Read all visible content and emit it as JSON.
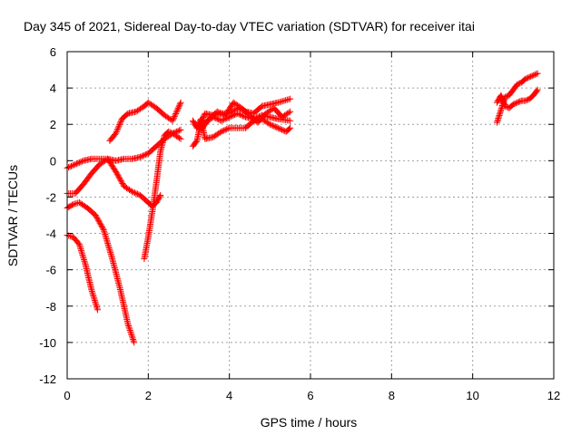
{
  "chart_data": {
    "type": "scatter",
    "title": "Day 345 of 2021, Sidereal Day-to-day VTEC variation (SDTVAR) for receiver itai",
    "xlabel": "GPS time / hours",
    "ylabel": "SDTVAR / TECUs",
    "xlim": [
      0,
      12
    ],
    "ylim": [
      -12,
      6
    ],
    "xticks": [
      "0",
      "2",
      "4",
      "6",
      "8",
      "10",
      "12"
    ],
    "yticks": [
      "6",
      "4",
      "2",
      "0",
      "-2",
      "-4",
      "-6",
      "-8",
      "-10",
      "-12"
    ],
    "grid": true,
    "marker": "+",
    "color": "#ff0000",
    "series": [
      {
        "x": [
          0.0,
          0.2,
          0.4,
          0.6,
          0.8,
          1.0,
          1.2,
          1.4,
          1.6,
          1.8,
          2.0,
          2.2,
          2.4,
          2.6,
          2.8
        ],
        "y": [
          -0.4,
          -0.2,
          0.0,
          0.1,
          0.1,
          0.1,
          0.0,
          0.1,
          0.1,
          0.2,
          0.4,
          0.8,
          1.2,
          1.5,
          1.7
        ]
      },
      {
        "x": [
          0.0,
          0.2,
          0.4,
          0.6,
          0.8,
          1.0,
          1.2,
          1.4,
          1.6,
          1.8,
          2.0,
          2.1,
          2.2,
          2.3
        ],
        "y": [
          -1.8,
          -1.8,
          -1.3,
          -0.7,
          -0.2,
          0.1,
          -0.6,
          -1.4,
          -1.7,
          -1.9,
          -2.3,
          -2.5,
          -2.3,
          -1.9
        ]
      },
      {
        "x": [
          0.0,
          0.15,
          0.3,
          0.5,
          0.7,
          0.9,
          1.1,
          1.3,
          1.5,
          1.65
        ],
        "y": [
          -2.6,
          -2.4,
          -2.3,
          -2.6,
          -3.0,
          -3.8,
          -5.3,
          -7.0,
          -9.0,
          -10.0
        ]
      },
      {
        "x": [
          0.0,
          0.15,
          0.3,
          0.45,
          0.6,
          0.75
        ],
        "y": [
          -4.1,
          -4.2,
          -4.6,
          -5.7,
          -7.1,
          -8.2
        ]
      },
      {
        "x": [
          1.05,
          1.2,
          1.35,
          1.5,
          1.7,
          1.9,
          2.0,
          2.2,
          2.4,
          2.6,
          2.8
        ],
        "y": [
          1.1,
          1.5,
          2.3,
          2.6,
          2.7,
          3.0,
          3.2,
          2.9,
          2.5,
          2.2,
          3.2
        ]
      },
      {
        "x": [
          1.9,
          2.0,
          2.1,
          2.2,
          2.3,
          2.4,
          2.5,
          2.6,
          2.8
        ],
        "y": [
          -5.4,
          -4.2,
          -2.8,
          -1.2,
          0.5,
          1.4,
          1.6,
          1.5,
          1.2
        ]
      },
      {
        "x": [
          3.1,
          3.2,
          3.3,
          3.4,
          3.6,
          3.8,
          4.0,
          4.2,
          4.4,
          4.6,
          4.8,
          5.0,
          5.2,
          5.5
        ],
        "y": [
          0.8,
          1.1,
          2.1,
          2.6,
          2.5,
          2.6,
          2.6,
          2.9,
          2.7,
          2.6,
          3.0,
          3.1,
          3.2,
          3.4
        ]
      },
      {
        "x": [
          3.1,
          3.2,
          3.3,
          3.4,
          3.6,
          3.8,
          4.0,
          4.2,
          4.4,
          4.6,
          4.8,
          5.0,
          5.2,
          5.4,
          5.5
        ],
        "y": [
          2.2,
          1.8,
          2.3,
          1.2,
          1.3,
          1.6,
          1.8,
          1.8,
          1.8,
          2.2,
          2.3,
          2.0,
          1.8,
          1.6,
          1.8
        ]
      },
      {
        "x": [
          3.3,
          3.5,
          3.7,
          3.9,
          4.1,
          4.3,
          4.5,
          4.7,
          4.9,
          5.1,
          5.3,
          5.5
        ],
        "y": [
          1.7,
          2.3,
          2.7,
          2.5,
          3.2,
          2.9,
          2.5,
          2.1,
          2.6,
          2.9,
          2.4,
          2.7
        ]
      },
      {
        "x": [
          3.4,
          3.6,
          3.8,
          4.0,
          4.2,
          4.4,
          4.6,
          4.8,
          5.0,
          5.2,
          5.5
        ],
        "y": [
          2.1,
          2.4,
          2.2,
          2.4,
          2.6,
          2.4,
          2.3,
          2.5,
          2.4,
          2.3,
          2.2
        ]
      },
      {
        "x": [
          10.6,
          10.7,
          10.8,
          10.9,
          11.0,
          11.1,
          11.2,
          11.3,
          11.4,
          11.5,
          11.6
        ],
        "y": [
          2.1,
          2.8,
          3.5,
          3.6,
          3.9,
          4.2,
          4.3,
          4.5,
          4.6,
          4.7,
          4.8
        ]
      },
      {
        "x": [
          10.6,
          10.7,
          10.8,
          10.9,
          11.0,
          11.1,
          11.2,
          11.3,
          11.4,
          11.5,
          11.6
        ],
        "y": [
          3.2,
          3.6,
          3.0,
          2.9,
          3.1,
          3.2,
          3.3,
          3.3,
          3.4,
          3.6,
          3.9
        ]
      }
    ]
  }
}
